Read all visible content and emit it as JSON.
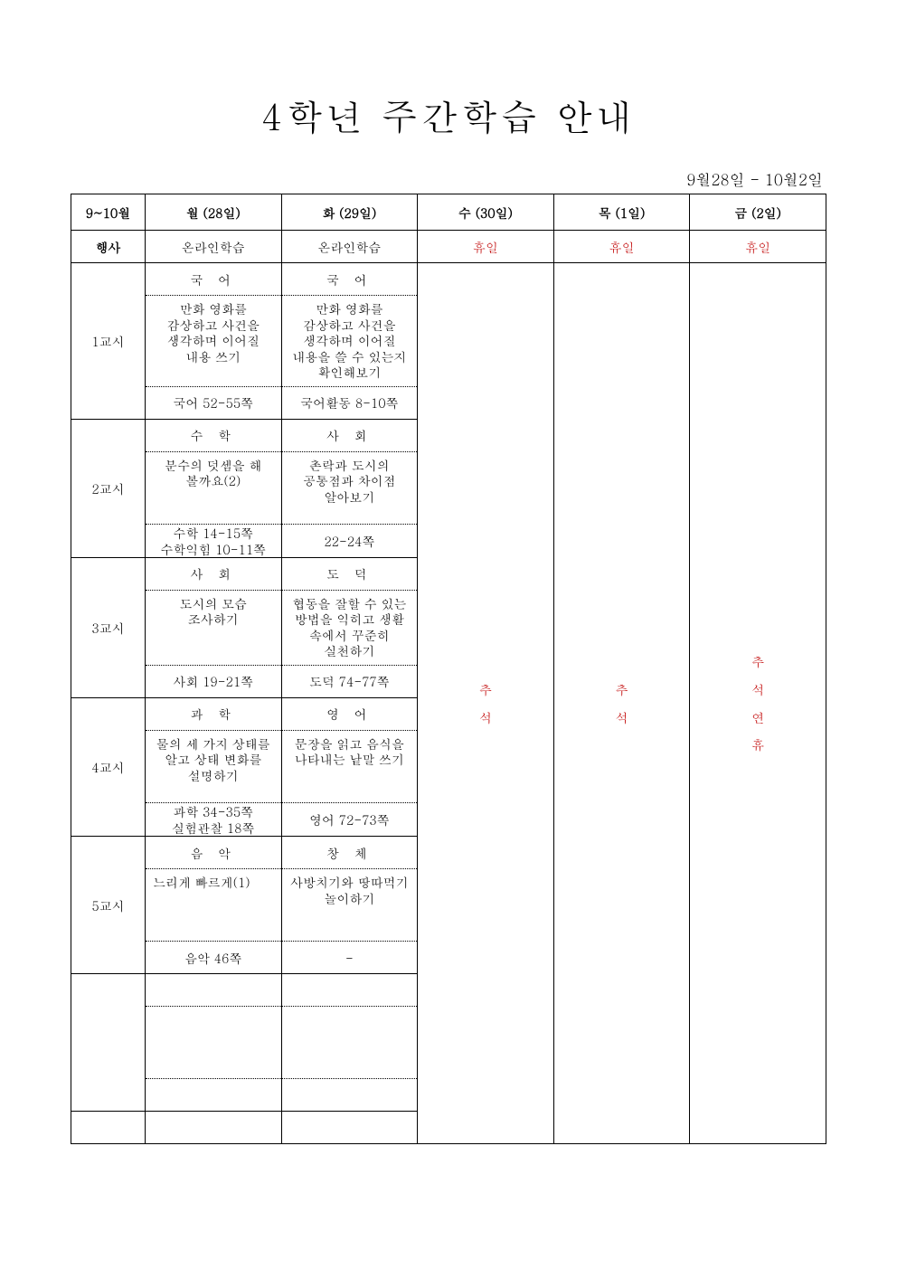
{
  "title": "4학년 주간학습 안내",
  "date_range": "9월28일 - 10월2일",
  "colors": {
    "text": "#000000",
    "holiday": "#c00000",
    "border": "#000000",
    "background": "#ffffff"
  },
  "header": {
    "period_col": "9~10월",
    "days": [
      "월 (28일)",
      "화 (29일)",
      "수 (30일)",
      "목 (1일)",
      "금 (2일)"
    ]
  },
  "event_row": {
    "label": "행사",
    "cells": [
      "온라인학습",
      "온라인학습",
      "휴일",
      "휴일",
      "휴일"
    ],
    "red_flags": [
      false,
      false,
      true,
      true,
      true
    ]
  },
  "holidays": {
    "wed": "추석",
    "thu": "추석",
    "fri": "추석연휴"
  },
  "periods": [
    {
      "label": "1교시",
      "mon": {
        "subject": "국 어",
        "desc": "만화 영화를 감상하고 사건을 생각하며 이어질 내용 쓰기",
        "pages": "국어 52-55쪽"
      },
      "tue": {
        "subject": "국 어",
        "desc": "만화 영화를 감상하고 사건을 생각하며 이어질 내용을 쓸 수 있는지 확인해보기",
        "pages": "국어활동 8-10쪽"
      }
    },
    {
      "label": "2교시",
      "mon": {
        "subject": "수 학",
        "desc": "분수의 덧셈을 해 볼까요(2)",
        "pages": "수학 14-15쪽\n수학익힘 10-11쪽"
      },
      "tue": {
        "subject": "사 회",
        "desc": "촌락과 도시의 공통점과 차이점 알아보기",
        "pages": "22-24쪽"
      }
    },
    {
      "label": "3교시",
      "mon": {
        "subject": "사 회",
        "desc": "도시의 모습 조사하기",
        "pages": "사회 19-21쪽"
      },
      "tue": {
        "subject": "도 덕",
        "desc": "협동을 잘할 수 있는 방법을 익히고 생활 속에서 꾸준히 실천하기",
        "pages": "도덕 74-77쪽"
      }
    },
    {
      "label": "4교시",
      "mon": {
        "subject": "과 학",
        "desc": "물의 세 가지 상태를 알고 상태 변화를 설명하기",
        "pages": "과학 34-35쪽\n실험관찰 18쪽"
      },
      "tue": {
        "subject": "영 어",
        "desc": "문장을 읽고 음식을 나타내는 낱말 쓰기",
        "pages": "영어 72-73쪽"
      }
    },
    {
      "label": "5교시",
      "mon": {
        "subject": "음 악",
        "desc": "느리게 빠르게(1)",
        "pages": "음악 46쪽"
      },
      "tue": {
        "subject": "창 체",
        "desc": "사방치기와 땅따먹기 놀이하기",
        "pages": "-"
      }
    }
  ]
}
